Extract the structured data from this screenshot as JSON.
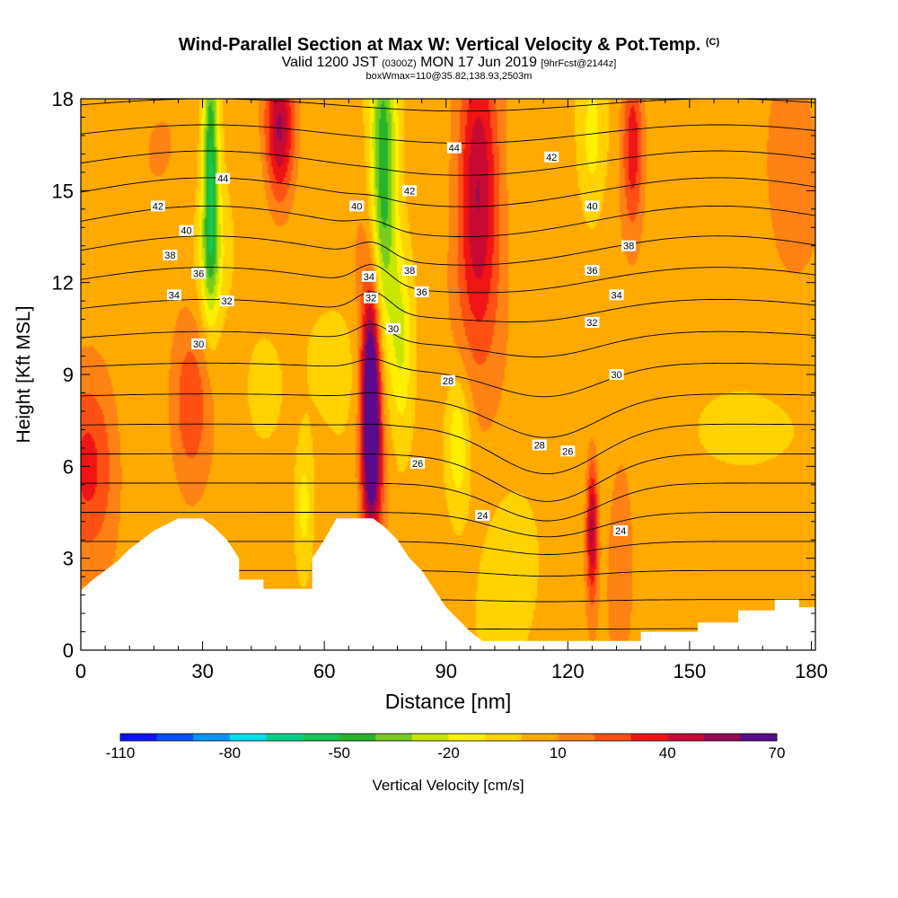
{
  "title": {
    "main": "Wind-Parallel Section at Max W: Vertical Velocity & Pot.Temp.",
    "copyright": "(C)",
    "valid_prefix": "Valid 1200 JST",
    "valid_zulu": "(0300Z)",
    "valid_date": "MON 17 Jun 2019",
    "forecast": "[9hrFcst@2144z]",
    "box": "boxWmax=110@35.82,138.93,2503m"
  },
  "chart_data": {
    "type": "heatmap",
    "xlabel": "Distance [nm]",
    "ylabel": "Height [Kft MSL]",
    "xlim": [
      0,
      181
    ],
    "ylim": [
      0,
      18
    ],
    "xticks": [
      0,
      30,
      60,
      90,
      120,
      150,
      180
    ],
    "yticks": [
      0,
      3,
      6,
      9,
      12,
      15,
      18
    ],
    "colorbar": {
      "label": "Vertical Velocity [cm/s]",
      "ticks": [
        -110,
        -80,
        -50,
        -20,
        10,
        40,
        70
      ],
      "range": [
        -110,
        70
      ],
      "step": 10,
      "colors": [
        "#0a14ff",
        "#0050ff",
        "#0096ff",
        "#00e0f0",
        "#00d28c",
        "#14c850",
        "#28b428",
        "#78cc1e",
        "#c8e600",
        "#fff000",
        "#ffd200",
        "#ffaa00",
        "#ff8214",
        "#ff5014",
        "#f01414",
        "#c80a32",
        "#960a5a",
        "#5a0a8c"
      ]
    },
    "terrain_kft": [
      [
        0,
        1.95
      ],
      [
        3,
        2.3
      ],
      [
        6,
        2.6
      ],
      [
        9,
        2.9
      ],
      [
        12,
        3.3
      ],
      [
        15,
        3.6
      ],
      [
        18,
        3.9
      ],
      [
        21,
        4.1
      ],
      [
        24,
        4.3
      ],
      [
        30,
        4.3
      ],
      [
        33,
        4.0
      ],
      [
        36,
        3.6
      ],
      [
        39,
        3.0
      ],
      [
        39,
        2.3
      ],
      [
        45,
        2.3
      ],
      [
        45,
        2.0
      ],
      [
        57,
        2.0
      ],
      [
        57,
        3.0
      ],
      [
        60,
        3.6
      ],
      [
        63,
        4.3
      ],
      [
        72,
        4.3
      ],
      [
        75,
        4.0
      ],
      [
        78,
        3.6
      ],
      [
        81,
        3.0
      ],
      [
        84,
        2.6
      ],
      [
        87,
        2.0
      ],
      [
        90,
        1.4
      ],
      [
        93,
        1.0
      ],
      [
        96,
        0.6
      ],
      [
        99,
        0.3
      ],
      [
        138,
        0.3
      ],
      [
        138,
        0.6
      ],
      [
        152,
        0.6
      ],
      [
        152,
        0.9
      ],
      [
        162,
        0.9
      ],
      [
        162,
        1.3
      ],
      [
        171,
        1.3
      ],
      [
        171,
        1.65
      ],
      [
        177,
        1.65
      ],
      [
        177,
        1.4
      ],
      [
        181,
        1.4
      ]
    ],
    "w_features": [
      {
        "x": 71.5,
        "y": 7.8,
        "sx": 1.5,
        "sy": 2.4,
        "w": 90
      },
      {
        "x": 72.5,
        "y": 9.8,
        "sx": 3.0,
        "sy": 3.5,
        "w": 22
      },
      {
        "x": 72.5,
        "y": 5.5,
        "sx": 2.2,
        "sy": 1.5,
        "w": 15
      },
      {
        "x": 74.5,
        "y": 15.0,
        "sx": 2.3,
        "sy": 4.0,
        "w": -58
      },
      {
        "x": 79,
        "y": 10.3,
        "sx": 2.0,
        "sy": 2.2,
        "w": -25
      },
      {
        "x": 93,
        "y": 6.8,
        "sx": 2.2,
        "sy": 1.6,
        "w": -25
      },
      {
        "x": 32,
        "y": 16.0,
        "sx": 1.4,
        "sy": 3.0,
        "w": -55
      },
      {
        "x": 32,
        "y": 12.8,
        "sx": 2.5,
        "sy": 1.5,
        "w": -22
      },
      {
        "x": 49,
        "y": 17.0,
        "sx": 2.5,
        "sy": 1.7,
        "w": 48
      },
      {
        "x": 98,
        "y": 15.5,
        "sx": 3.5,
        "sy": 3.0,
        "w": 42
      },
      {
        "x": 98,
        "y": 11.8,
        "sx": 5.0,
        "sy": 2.6,
        "w": 16
      },
      {
        "x": 126,
        "y": 4.0,
        "sx": 1.0,
        "sy": 1.6,
        "w": 48
      },
      {
        "x": 133,
        "y": 3.5,
        "sx": 2.2,
        "sy": 2.5,
        "w": 14
      },
      {
        "x": 136,
        "y": 16.5,
        "sx": 1.8,
        "sy": 2.0,
        "w": 32
      },
      {
        "x": 2,
        "y": 6.0,
        "sx": 5.0,
        "sy": 2.2,
        "w": 30
      },
      {
        "x": 27,
        "y": 8.0,
        "sx": 3.5,
        "sy": 2.0,
        "w": 24
      },
      {
        "x": 55,
        "y": 4.7,
        "sx": 1.5,
        "sy": 1.5,
        "w": -18
      },
      {
        "x": 45,
        "y": 8.2,
        "sx": 4.0,
        "sy": 1.5,
        "w": -10
      },
      {
        "x": 126,
        "y": 16.5,
        "sx": 2.5,
        "sy": 2.0,
        "w": -18
      },
      {
        "x": 175,
        "y": 16.0,
        "sx": 4.5,
        "sy": 2.5,
        "w": 14
      },
      {
        "x": 160,
        "y": 7.2,
        "sx": 9.0,
        "sy": 1.2,
        "w": -10
      },
      {
        "x": 106,
        "y": 3.0,
        "sx": 5.0,
        "sy": 2.0,
        "w": -10
      },
      {
        "x": 63,
        "y": 9.5,
        "sx": 6.0,
        "sy": 1.5,
        "w": -8
      },
      {
        "x": 20,
        "y": 17.0,
        "sx": 6.0,
        "sy": 1.8,
        "w": 6
      }
    ],
    "isentrope_labels": [
      {
        "x": 35,
        "y": 15.4,
        "text": "44"
      },
      {
        "x": 19,
        "y": 14.5,
        "text": "42"
      },
      {
        "x": 26,
        "y": 13.7,
        "text": "40"
      },
      {
        "x": 22,
        "y": 12.9,
        "text": "38"
      },
      {
        "x": 29,
        "y": 12.3,
        "text": "36"
      },
      {
        "x": 23,
        "y": 11.6,
        "text": "34"
      },
      {
        "x": 36,
        "y": 11.4,
        "text": "32"
      },
      {
        "x": 29,
        "y": 10.0,
        "text": "30"
      },
      {
        "x": 68,
        "y": 14.5,
        "text": "40"
      },
      {
        "x": 81,
        "y": 15.0,
        "text": "42"
      },
      {
        "x": 71,
        "y": 12.2,
        "text": "34"
      },
      {
        "x": 81,
        "y": 12.4,
        "text": "38"
      },
      {
        "x": 84,
        "y": 11.7,
        "text": "36"
      },
      {
        "x": 71.5,
        "y": 11.5,
        "text": "32"
      },
      {
        "x": 77,
        "y": 10.5,
        "text": "30"
      },
      {
        "x": 90.5,
        "y": 8.8,
        "text": "28"
      },
      {
        "x": 83,
        "y": 6.1,
        "text": "26"
      },
      {
        "x": 92,
        "y": 16.4,
        "text": "44"
      },
      {
        "x": 116,
        "y": 16.1,
        "text": "42"
      },
      {
        "x": 126,
        "y": 14.5,
        "text": "40"
      },
      {
        "x": 135,
        "y": 13.2,
        "text": "38"
      },
      {
        "x": 126,
        "y": 12.4,
        "text": "36"
      },
      {
        "x": 132,
        "y": 11.6,
        "text": "34"
      },
      {
        "x": 126,
        "y": 10.7,
        "text": "32"
      },
      {
        "x": 132,
        "y": 9.0,
        "text": "30"
      },
      {
        "x": 113,
        "y": 6.7,
        "text": "28"
      },
      {
        "x": 120,
        "y": 6.5,
        "text": "26"
      },
      {
        "x": 99,
        "y": 4.4,
        "text": "24"
      },
      {
        "x": 133,
        "y": 3.9,
        "text": "24"
      }
    ]
  }
}
